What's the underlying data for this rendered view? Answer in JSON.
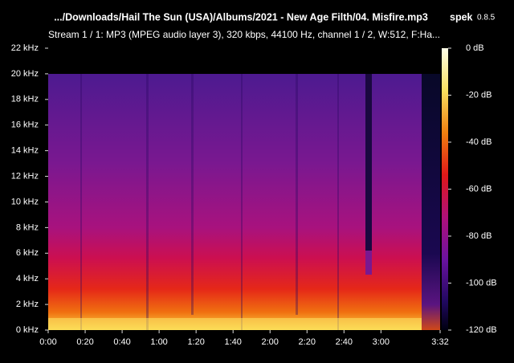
{
  "chart_data": {
    "type": "spectrogram",
    "title": ".../Downloads/Hail The Sun (USA)/Albums/2021 - New Age Filth/04. Misfire.mp3",
    "subtitle": "Stream 1 / 1: MP3 (MPEG audio layer 3), 320 kbps, 44100 Hz, channel 1 / 2, W:512, F:Ha...",
    "app_name": "spek",
    "app_version": "0.8.5",
    "xlim": [
      0,
      212
    ],
    "xticks": [
      {
        "value": 0,
        "label": "0:00"
      },
      {
        "value": 20,
        "label": "0:20"
      },
      {
        "value": 40,
        "label": "0:40"
      },
      {
        "value": 60,
        "label": "1:00"
      },
      {
        "value": 80,
        "label": "1:20"
      },
      {
        "value": 100,
        "label": "1:40"
      },
      {
        "value": 120,
        "label": "2:00"
      },
      {
        "value": 140,
        "label": "2:20"
      },
      {
        "value": 160,
        "label": "2:40"
      },
      {
        "value": 180,
        "label": "3:00"
      },
      {
        "value": 212,
        "label": "3:32"
      }
    ],
    "ylim": [
      0,
      22
    ],
    "yticks": [
      {
        "value": 0,
        "label": "0 kHz"
      },
      {
        "value": 2,
        "label": "2 kHz"
      },
      {
        "value": 4,
        "label": "4 kHz"
      },
      {
        "value": 6,
        "label": "6 kHz"
      },
      {
        "value": 8,
        "label": "8 kHz"
      },
      {
        "value": 10,
        "label": "10 kHz"
      },
      {
        "value": 12,
        "label": "12 kHz"
      },
      {
        "value": 14,
        "label": "14 kHz"
      },
      {
        "value": 16,
        "label": "16 kHz"
      },
      {
        "value": 18,
        "label": "18 kHz"
      },
      {
        "value": 20,
        "label": "20 kHz"
      },
      {
        "value": 22,
        "label": "22 kHz"
      }
    ],
    "colorbar": {
      "zlim": [
        -120,
        0
      ],
      "zticks": [
        {
          "value": 0,
          "label": "0 dB"
        },
        {
          "value": -20,
          "label": "-20 dB"
        },
        {
          "value": -40,
          "label": "-40 dB"
        },
        {
          "value": -60,
          "label": "-60 dB"
        },
        {
          "value": -80,
          "label": "-80 dB"
        },
        {
          "value": -100,
          "label": "-100 dB"
        },
        {
          "value": -120,
          "label": "-120 dB"
        }
      ]
    }
  }
}
